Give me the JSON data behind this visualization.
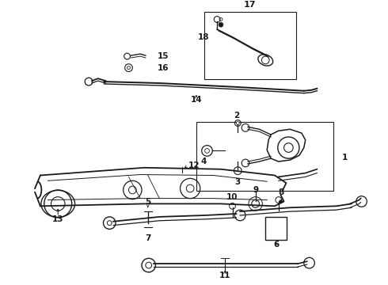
{
  "bg_color": "#ffffff",
  "line_color": "#1a1a1a",
  "fig_width": 4.9,
  "fig_height": 3.6,
  "dpi": 100
}
